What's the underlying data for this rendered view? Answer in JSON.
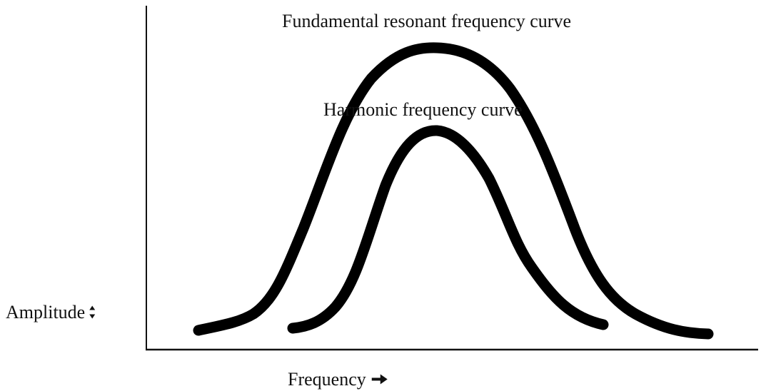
{
  "curves": [
    {
      "label": "Fundamental resonant frequency curve"
    },
    {
      "label": "Harmonic frequency curve"
    }
  ],
  "axes": {
    "y_label": "Amplitude",
    "x_label": "Frequency"
  }
}
